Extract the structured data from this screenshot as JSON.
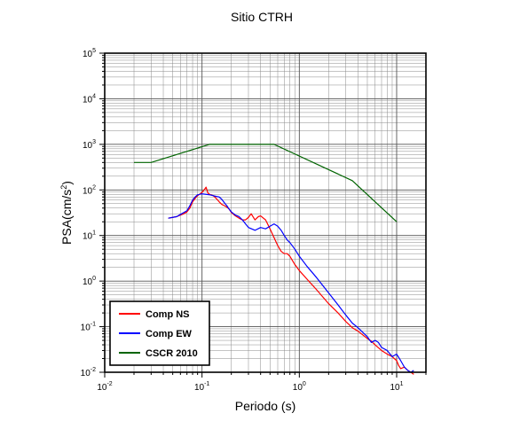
{
  "chart_data": {
    "type": "line",
    "title": "Sitio CTRH",
    "xlabel": "Periodo (s)",
    "ylabel_main": "PSA(cm/s",
    "ylabel_sup": "2",
    "ylabel_close": ")",
    "x_scale": "log",
    "y_scale": "log",
    "xlim": [
      0.01,
      20
    ],
    "ylim": [
      0.01,
      100000
    ],
    "grid": true,
    "legend_position": "bottom-left",
    "x_ticks": [
      {
        "value": 0.01,
        "base": "10",
        "exp": "-2"
      },
      {
        "value": 0.1,
        "base": "10",
        "exp": "-1"
      },
      {
        "value": 1,
        "base": "10",
        "exp": "0"
      },
      {
        "value": 10,
        "base": "10",
        "exp": "1"
      }
    ],
    "y_ticks": [
      {
        "value": 0.01,
        "base": "10",
        "exp": "-2"
      },
      {
        "value": 0.1,
        "base": "10",
        "exp": "-1"
      },
      {
        "value": 1,
        "base": "10",
        "exp": "0"
      },
      {
        "value": 10,
        "base": "10",
        "exp": "1"
      },
      {
        "value": 100,
        "base": "10",
        "exp": "2"
      },
      {
        "value": 1000,
        "base": "10",
        "exp": "3"
      },
      {
        "value": 10000,
        "base": "10",
        "exp": "4"
      },
      {
        "value": 100000,
        "base": "10",
        "exp": "5"
      }
    ],
    "series": [
      {
        "name": "Comp NS",
        "color": "#ff0000",
        "x": [
          0.045,
          0.05,
          0.055,
          0.06,
          0.065,
          0.07,
          0.075,
          0.08,
          0.085,
          0.09,
          0.1,
          0.105,
          0.11,
          0.115,
          0.12,
          0.13,
          0.14,
          0.15,
          0.16,
          0.17,
          0.18,
          0.19,
          0.2,
          0.22,
          0.24,
          0.26,
          0.28,
          0.3,
          0.32,
          0.35,
          0.38,
          0.4,
          0.45,
          0.5,
          0.55,
          0.6,
          0.65,
          0.7,
          0.75,
          0.8,
          0.9,
          1.0,
          1.2,
          1.5,
          2.0,
          2.5,
          3.0,
          3.5,
          4.0,
          5.0,
          5.5,
          6.0,
          7.0,
          8.0,
          9.0,
          10.0,
          10.5,
          11.0,
          12.0,
          13.0,
          14.0,
          15.0
        ],
        "y": [
          24,
          25,
          26,
          28,
          30,
          33,
          40,
          55,
          65,
          75,
          88,
          100,
          115,
          85,
          80,
          75,
          65,
          55,
          48,
          45,
          42,
          38,
          32,
          27,
          24,
          22,
          22,
          25,
          30,
          22,
          26,
          27,
          22,
          14,
          9,
          6,
          4.5,
          4,
          4,
          3.5,
          2.3,
          1.7,
          1.1,
          0.65,
          0.32,
          0.2,
          0.13,
          0.095,
          0.08,
          0.055,
          0.048,
          0.04,
          0.03,
          0.025,
          0.022,
          0.018,
          0.014,
          0.012,
          0.013,
          0.011,
          0.01,
          0.009
        ]
      },
      {
        "name": "Comp EW",
        "color": "#0000ff",
        "x": [
          0.045,
          0.05,
          0.055,
          0.06,
          0.065,
          0.07,
          0.075,
          0.08,
          0.085,
          0.09,
          0.1,
          0.11,
          0.12,
          0.13,
          0.14,
          0.15,
          0.16,
          0.17,
          0.18,
          0.19,
          0.2,
          0.22,
          0.24,
          0.26,
          0.28,
          0.3,
          0.35,
          0.4,
          0.45,
          0.5,
          0.55,
          0.6,
          0.65,
          0.7,
          0.75,
          0.8,
          0.9,
          1.0,
          1.2,
          1.5,
          2.0,
          2.5,
          3.0,
          3.5,
          4.0,
          5.0,
          5.5,
          6.0,
          6.5,
          7.0,
          8.0,
          9.0,
          10.0,
          11.0,
          12.0,
          13.0,
          14.0,
          15.0
        ],
        "y": [
          24,
          25,
          26,
          29,
          32,
          35,
          45,
          60,
          70,
          78,
          82,
          80,
          78,
          75,
          72,
          70,
          62,
          52,
          45,
          38,
          33,
          28,
          26,
          22,
          18,
          15,
          13,
          15,
          14,
          16,
          18,
          16,
          13,
          10,
          8,
          7,
          5,
          3.5,
          2.1,
          1.2,
          0.55,
          0.3,
          0.18,
          0.12,
          0.095,
          0.06,
          0.045,
          0.05,
          0.045,
          0.035,
          0.03,
          0.022,
          0.025,
          0.018,
          0.013,
          0.011,
          0.01,
          0.011
        ]
      },
      {
        "name": "CSCR 2010",
        "color": "#006400",
        "x": [
          0.02,
          0.03,
          0.12,
          0.55,
          3.5,
          10
        ],
        "y": [
          400,
          400,
          1000,
          1000,
          160,
          20
        ]
      }
    ]
  }
}
